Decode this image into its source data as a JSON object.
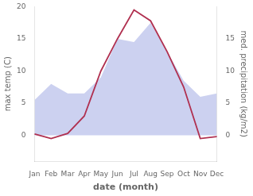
{
  "chart_data": {
    "type": "line",
    "xlabel": "date (month)",
    "ylabel": "max temp (C)",
    "y2label": "med. precipitation (kg/m2)",
    "categories": [
      "Jan",
      "Feb",
      "Mar",
      "Apr",
      "May",
      "Jun",
      "Jul",
      "Aug",
      "Sep",
      "Oct",
      "Nov",
      "Dec"
    ],
    "series": [
      {
        "type": "area",
        "color": "#b0b8e8",
        "axis": "y2",
        "values": [
          5.5,
          8.0,
          6.5,
          6.5,
          9.0,
          15.0,
          14.5,
          17.5,
          13.0,
          8.5,
          6.0,
          6.5
        ]
      },
      {
        "type": "line",
        "color": "#b03050",
        "values": [
          0.2,
          -0.5,
          0.3,
          3.0,
          10.0,
          15.0,
          19.5,
          17.8,
          13.0,
          7.5,
          -0.5,
          -0.2
        ]
      }
    ],
    "ylim": [
      -4,
      20
    ],
    "yticks": [
      0,
      5,
      10,
      15,
      20
    ],
    "y2lim": [
      -4,
      20
    ],
    "y2ticks": [
      0,
      5,
      10,
      15
    ],
    "grid": false
  }
}
